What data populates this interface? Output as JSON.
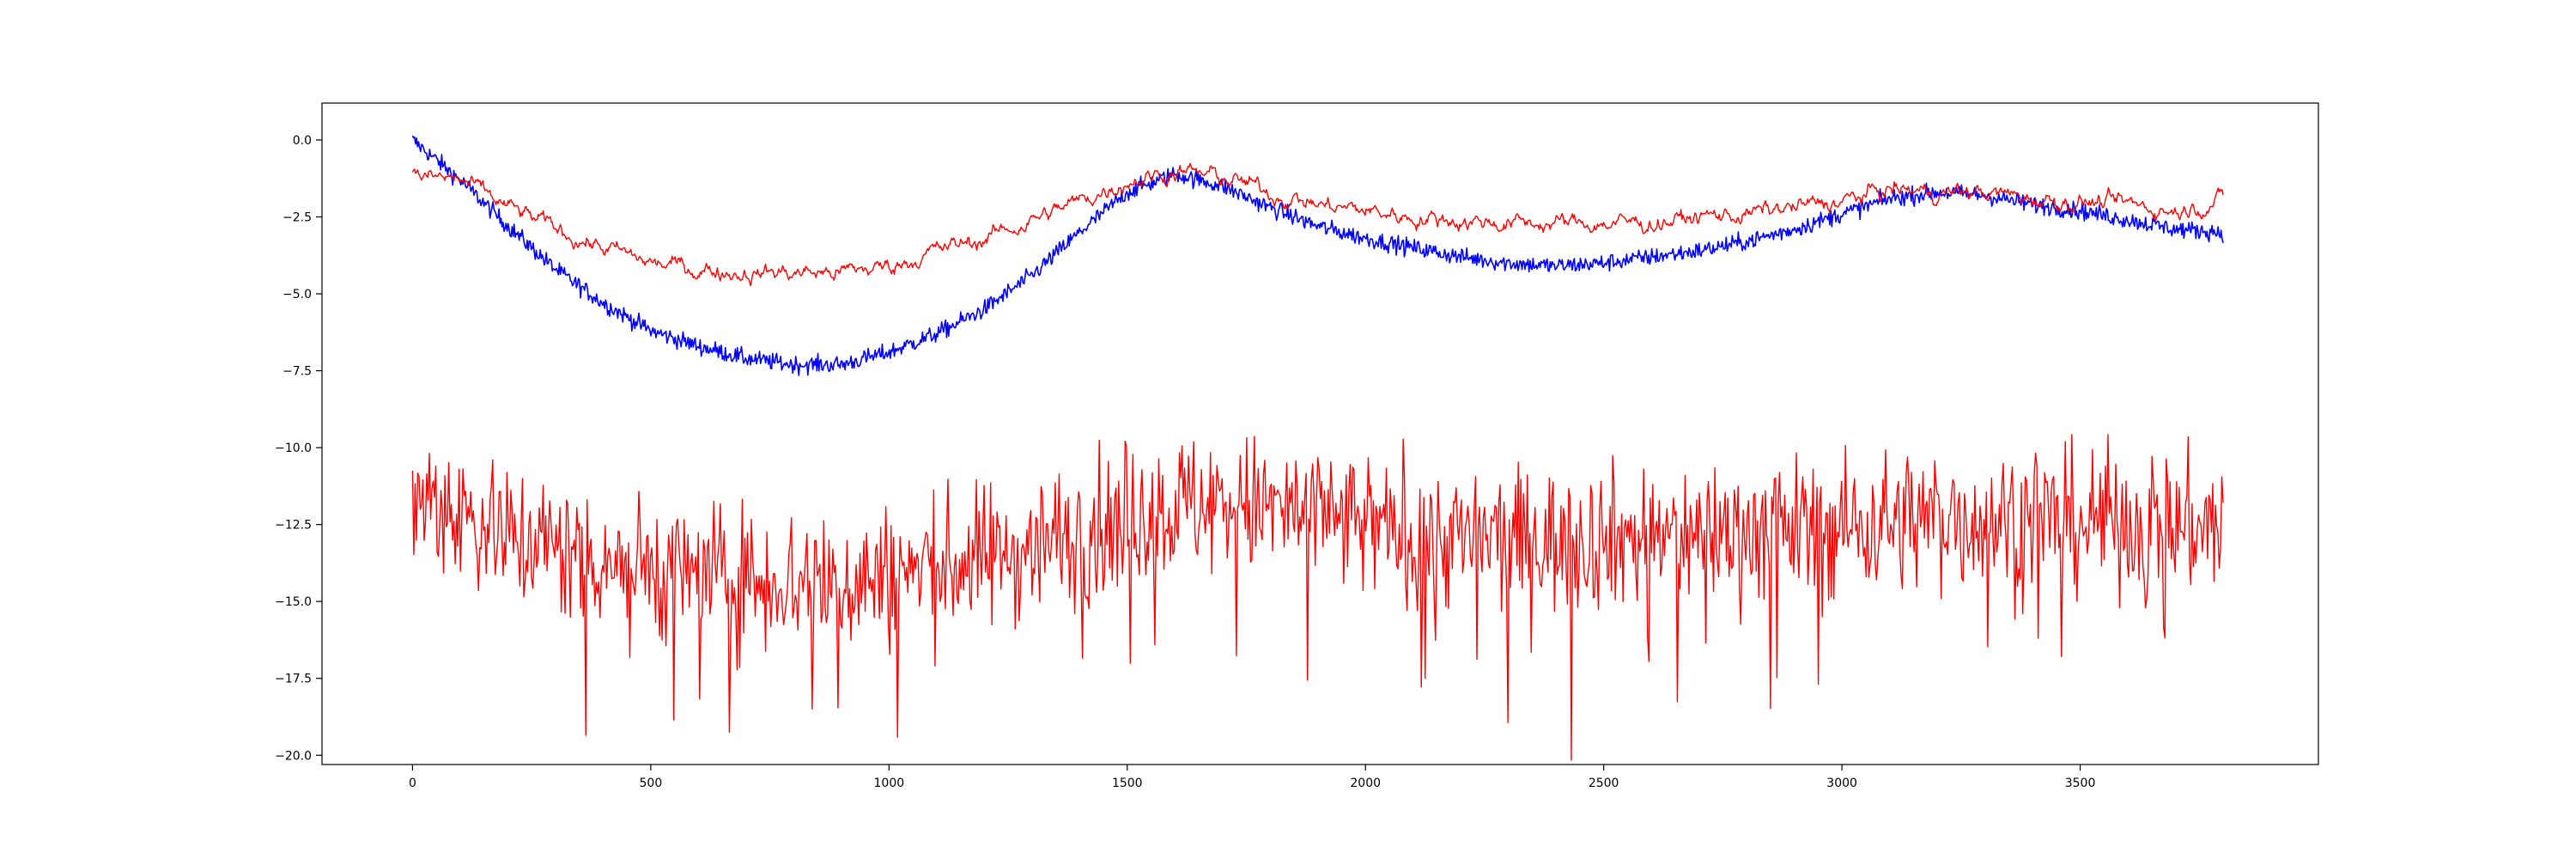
{
  "chart_data": {
    "type": "line",
    "title": "",
    "xlabel": "",
    "ylabel": "",
    "xlim": [
      -190,
      4000
    ],
    "ylim": [
      -20.3,
      1.2
    ],
    "grid": false,
    "legend": "none",
    "x_ticks": [
      {
        "value": 0,
        "label": "0"
      },
      {
        "value": 500,
        "label": "500"
      },
      {
        "value": 1000,
        "label": "1000"
      },
      {
        "value": 1500,
        "label": "1500"
      },
      {
        "value": 2000,
        "label": "2000"
      },
      {
        "value": 2500,
        "label": "2500"
      },
      {
        "value": 3000,
        "label": "3000"
      },
      {
        "value": 3500,
        "label": "3500"
      }
    ],
    "y_ticks": [
      {
        "value": 0.0,
        "label": "0.0"
      },
      {
        "value": -2.5,
        "label": "−2.5"
      },
      {
        "value": -5.0,
        "label": "−5.0"
      },
      {
        "value": -7.5,
        "label": "−7.5"
      },
      {
        "value": -10.0,
        "label": "−10.0"
      },
      {
        "value": -12.5,
        "label": "−12.5"
      },
      {
        "value": -15.0,
        "label": "−15.0"
      },
      {
        "value": -17.5,
        "label": "−17.5"
      },
      {
        "value": -20.0,
        "label": "−20.0"
      }
    ],
    "series": [
      {
        "color": "#0000ff",
        "x": [
          0,
          100,
          200,
          300,
          400,
          500,
          600,
          700,
          800,
          900,
          1000,
          1100,
          1200,
          1300,
          1400,
          1500,
          1600,
          1700,
          1800,
          1900,
          2000,
          2100,
          2200,
          2300,
          2400,
          2500,
          2600,
          2700,
          2800,
          2900,
          3000,
          3100,
          3200,
          3300,
          3400,
          3500,
          3600,
          3700,
          3800
        ],
        "y": [
          0.0,
          -1.3,
          -2.8,
          -4.2,
          -5.3,
          -6.2,
          -6.7,
          -7.1,
          -7.3,
          -7.3,
          -6.9,
          -6.3,
          -5.5,
          -4.4,
          -3.0,
          -1.7,
          -1.1,
          -1.5,
          -2.2,
          -2.8,
          -3.2,
          -3.5,
          -3.8,
          -4.0,
          -4.1,
          -4.0,
          -3.8,
          -3.6,
          -3.3,
          -2.9,
          -2.4,
          -1.9,
          -1.7,
          -1.8,
          -2.1,
          -2.3,
          -2.6,
          -2.9,
          -3.0
        ],
        "noise": 0.14
      },
      {
        "color": "#ff0000",
        "x": [
          0,
          100,
          200,
          300,
          400,
          500,
          600,
          700,
          800,
          900,
          1000,
          1100,
          1200,
          1300,
          1400,
          1500,
          1600,
          1700,
          1800,
          1900,
          2000,
          2100,
          2200,
          2300,
          2400,
          2500,
          2600,
          2700,
          2800,
          2900,
          3000,
          3100,
          3200,
          3300,
          3400,
          3500,
          3600,
          3700,
          3800
        ],
        "y": [
          -1.2,
          -1.3,
          -2.2,
          -2.9,
          -3.5,
          -4.0,
          -4.2,
          -4.3,
          -4.3,
          -4.3,
          -4.1,
          -3.6,
          -3.2,
          -2.6,
          -2.0,
          -1.3,
          -1.0,
          -1.2,
          -1.7,
          -2.1,
          -2.3,
          -2.5,
          -2.6,
          -2.7,
          -2.7,
          -2.7,
          -2.7,
          -2.5,
          -2.4,
          -2.2,
          -2.0,
          -1.6,
          -1.7,
          -1.7,
          -1.9,
          -2.0,
          -2.1,
          -2.3,
          -1.9
        ],
        "noise": 0.09
      },
      {
        "color": "#ff0000",
        "x": [
          0,
          100,
          200,
          300,
          400,
          500,
          600,
          700,
          800,
          900,
          1000,
          1100,
          1200,
          1300,
          1400,
          1500,
          1600,
          1700,
          1800,
          1900,
          2000,
          2100,
          2200,
          2300,
          2400,
          2500,
          2600,
          2700,
          2800,
          2900,
          3000,
          3100,
          3200,
          3300,
          3400,
          3500,
          3600,
          3700,
          3800
        ],
        "y": [
          -11.5,
          -12.0,
          -12.8,
          -13.3,
          -13.6,
          -13.9,
          -14.1,
          -14.3,
          -14.3,
          -14.4,
          -14.2,
          -13.9,
          -13.6,
          -13.2,
          -12.8,
          -12.2,
          -11.9,
          -11.8,
          -12.0,
          -12.2,
          -12.6,
          -12.8,
          -13.0,
          -13.0,
          -13.0,
          -12.9,
          -12.9,
          -12.8,
          -12.7,
          -12.6,
          -12.6,
          -12.4,
          -12.3,
          -12.3,
          -12.3,
          -12.4,
          -12.4,
          -12.5,
          -12.6
        ],
        "noise": 1.15
      }
    ]
  }
}
